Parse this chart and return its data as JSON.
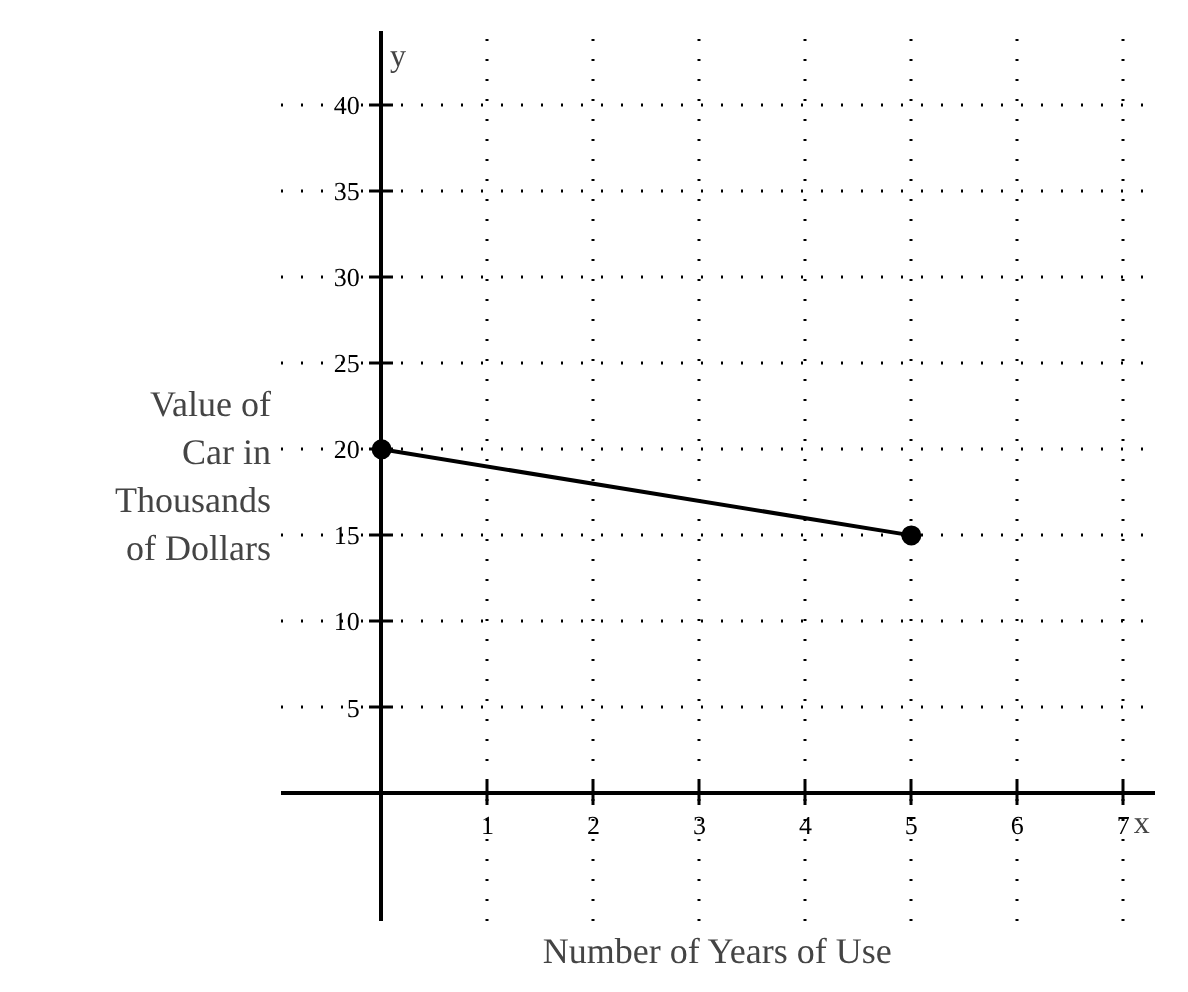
{
  "chart_data": {
    "type": "line",
    "xlabel": "Number of Years of Use",
    "ylabel": "Value of Car in Thousands of Dollars",
    "annotations": [
      "y",
      "x"
    ],
    "x": [
      0,
      5
    ],
    "series": [
      {
        "color": "#000000",
        "values": [
          20,
          15
        ]
      }
    ],
    "marker": "circle",
    "line_style": "solid",
    "xlim": [
      -0.95,
      7.3
    ],
    "ylim": [
      -7.4,
      44.3
    ],
    "xticks": [
      1,
      2,
      3,
      4,
      5,
      6,
      7
    ],
    "yticks": [
      5,
      10,
      15,
      20,
      25,
      30,
      35,
      40
    ],
    "grid": true
  }
}
